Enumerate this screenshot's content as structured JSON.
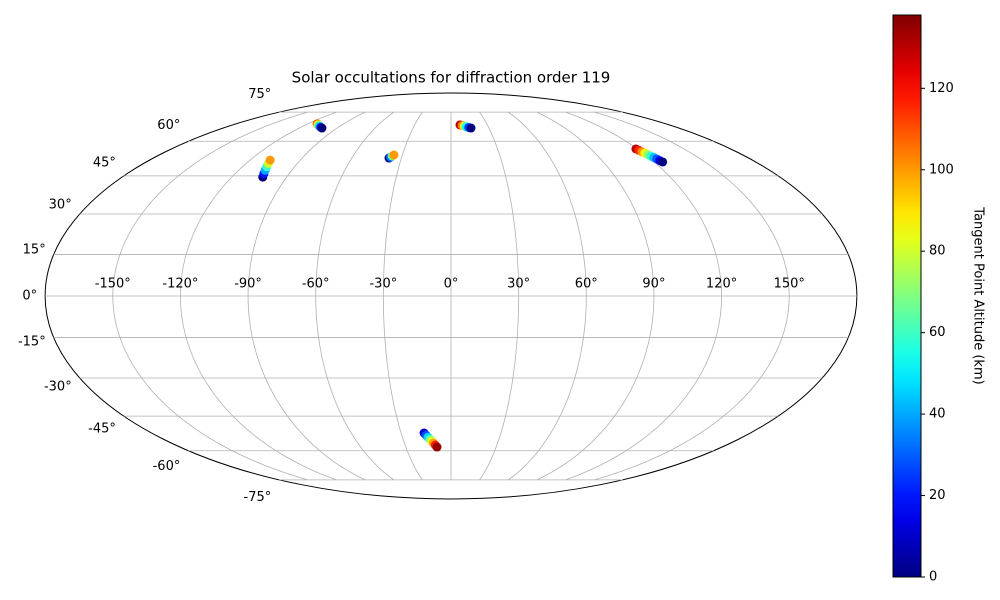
{
  "chart_data": {
    "type": "scatter",
    "projection": "mollweide",
    "colormap": "jet",
    "title": "Solar occultations for diffraction order 119",
    "colorbar_label": "Tangent Point Altitude (km)",
    "xlim": [
      -180,
      180
    ],
    "ylim": [
      -90,
      90
    ],
    "grid": true,
    "xticks": [
      {
        "value": -150,
        "label": "-150°"
      },
      {
        "value": -120,
        "label": "-120°"
      },
      {
        "value": -90,
        "label": "-90°"
      },
      {
        "value": -60,
        "label": "-60°"
      },
      {
        "value": -30,
        "label": "-30°"
      },
      {
        "value": 0,
        "label": "0°"
      },
      {
        "value": 30,
        "label": "30°"
      },
      {
        "value": 60,
        "label": "60°"
      },
      {
        "value": 90,
        "label": "90°"
      },
      {
        "value": 120,
        "label": "120°"
      },
      {
        "value": 150,
        "label": "150°"
      }
    ],
    "yticks": [
      {
        "value": -75,
        "label": "-75°"
      },
      {
        "value": -60,
        "label": "-60°"
      },
      {
        "value": -45,
        "label": "-45°"
      },
      {
        "value": -30,
        "label": "-30°"
      },
      {
        "value": -15,
        "label": "-15°"
      },
      {
        "value": 0,
        "label": "0°"
      },
      {
        "value": 15,
        "label": "15°"
      },
      {
        "value": 30,
        "label": "30°"
      },
      {
        "value": 45,
        "label": "45°"
      },
      {
        "value": 60,
        "label": "60°"
      },
      {
        "value": 75,
        "label": "75°"
      }
    ],
    "clim": [
      0,
      138
    ],
    "cticks": [
      0,
      20,
      40,
      60,
      80,
      100,
      120
    ],
    "x": [
      -112,
      -110,
      -108,
      -106,
      -104,
      -102,
      -103,
      -104,
      -105,
      -106,
      -107,
      -108,
      -37.5,
      -36.7,
      -36.0,
      -35.2,
      7.4,
      9.1,
      10.8,
      12.4,
      14.1,
      15.8,
      119,
      119.7,
      120.3,
      121,
      121.7,
      122.3,
      123,
      123.7,
      124.3,
      125,
      -16.2,
      -15.2,
      -14.2,
      -13.2,
      -12.3,
      -11.3,
      -10.3,
      -9.3
    ],
    "y": [
      68.5,
      68.1,
      67.7,
      67.2,
      66.8,
      66.4,
      44.5,
      45.9,
      47.3,
      48.8,
      50.2,
      51.6,
      52.5,
      52.9,
      53.4,
      53.8,
      68,
      67.7,
      67.4,
      67.0,
      66.7,
      66.4,
      56.5,
      55.9,
      55.2,
      54.6,
      54.0,
      53.3,
      52.7,
      52.1,
      51.4,
      50.8,
      -52.1,
      -53.0,
      -53.9,
      -54.8,
      -55.6,
      -56.5,
      -57.4,
      -58.3
    ],
    "altitude": [
      110,
      88,
      66,
      44,
      22,
      0,
      0,
      20,
      40,
      60,
      80,
      100,
      0,
      33,
      67,
      100,
      130,
      104,
      78,
      52,
      26,
      0,
      130,
      116,
      101,
      87,
      72,
      58,
      43,
      29,
      14,
      0,
      10,
      28,
      46,
      64,
      82,
      99,
      117,
      135
    ]
  }
}
